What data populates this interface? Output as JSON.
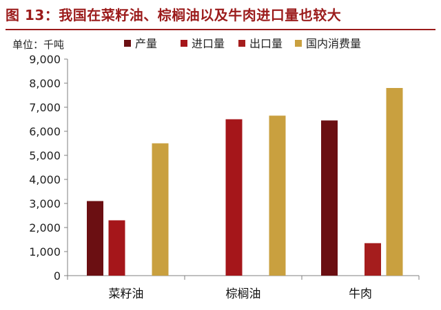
{
  "figure": {
    "title": "图 13：我国在菜籽油、棕榈油以及牛肉进口量也较大",
    "unit_label": "单位：千吨"
  },
  "colors": {
    "title": "#9b1b1b",
    "axis": "#7f7f7f"
  },
  "chart_data": {
    "type": "bar",
    "categories": [
      "菜籽油",
      "棕榈油",
      "牛肉"
    ],
    "series": [
      {
        "name": "产量",
        "values": [
          3100,
          0,
          6450
        ],
        "color": "#6b0f12"
      },
      {
        "name": "进口量",
        "values": [
          2300,
          6500,
          0
        ],
        "color": "#a5161a"
      },
      {
        "name": "出口量",
        "values": [
          0,
          0,
          1350
        ],
        "color": "#a51d1d"
      },
      {
        "name": "国内消费量",
        "values": [
          5500,
          6650,
          7800
        ],
        "color": "#c9a03f"
      }
    ],
    "ylim": [
      0,
      9000
    ],
    "yticks": [
      0,
      1000,
      2000,
      3000,
      4000,
      5000,
      6000,
      7000,
      8000,
      9000
    ],
    "ytick_labels": [
      "0",
      "1,000",
      "2,000",
      "3,000",
      "4,000",
      "5,000",
      "6,000",
      "7,000",
      "8,000",
      "9,000"
    ],
    "xlabel": "",
    "ylabel": "",
    "grid": false,
    "legend_position": "top"
  }
}
